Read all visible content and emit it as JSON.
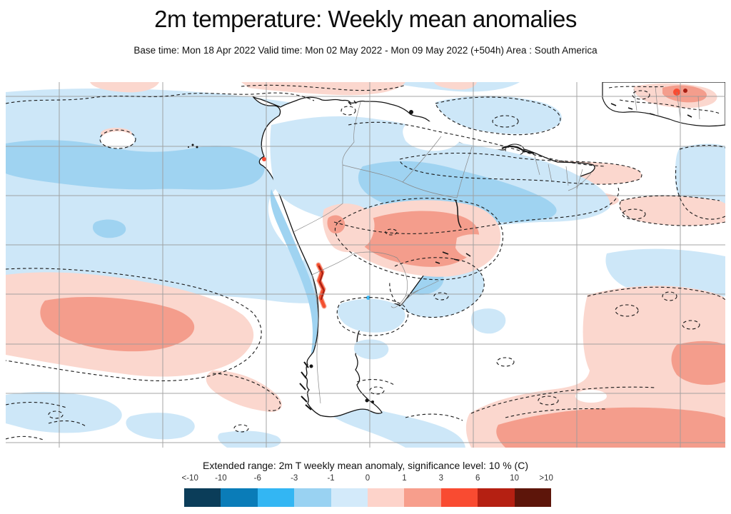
{
  "header": {
    "title": "2m temperature: Weekly mean anomalies",
    "subtitle": "Base time: Mon 18 Apr 2022 Valid time: Mon 02 May 2022 - Mon 09 May 2022 (+504h) Area : South America"
  },
  "colorbar": {
    "caption": "Extended range: 2m T weekly mean anomaly, significance level: 10 % (C)",
    "tick_labels": [
      "<-10",
      "-10",
      "-6",
      "-3",
      "-1",
      "0",
      "1",
      "3",
      "6",
      "10",
      ">10"
    ],
    "segment_colors": [
      "#0b3d59",
      "#0a7cb8",
      "#33b6f3",
      "#99d2f2",
      "#d3eafa",
      "#fdd3ca",
      "#f79e8c",
      "#f94b31",
      "#b52012",
      "#5d150a"
    ],
    "units": "C"
  },
  "map": {
    "area": "South America",
    "variable": "2m temperature weekly mean anomaly",
    "significance_level": "10 %",
    "palette": {
      "pale_blue": "#cde7f8",
      "mid_blue": "#9fd3f1",
      "bright_blue": "#3fb9f4",
      "pale_pink": "#fbd7ce",
      "salmon": "#f49d8c",
      "orange_red": "#f94b31",
      "dark_red": "#a81f12",
      "grid": "#9c9c9c",
      "contour": "#1a1a1a"
    },
    "regions": [
      {
        "name": "tropical-pacific",
        "anomaly_c": "-1 to 0",
        "shade": "pale_blue"
      },
      {
        "name": "equatorial-pacific-band",
        "anomaly_c": "-3 to -1",
        "shade": "mid_blue"
      },
      {
        "name": "northern-south-america-band",
        "anomaly_c": "-3 to -1",
        "shade": "mid_blue"
      },
      {
        "name": "central-brazil",
        "anomaly_c": "1 to 3",
        "shade": "salmon"
      },
      {
        "name": "peru-bolivia",
        "anomaly_c": "0 to 3",
        "shade": "pale_pink"
      },
      {
        "name": "chilean-andes-strip",
        "anomaly_c": "3 to 10",
        "shade": "dark_red"
      },
      {
        "name": "south-pacific-warm-pool",
        "anomaly_c": "0 to 3",
        "shade": "pale_pink"
      },
      {
        "name": "south-atlantic-warm-region",
        "anomaly_c": "0 to 3",
        "shade": "pale_pink"
      },
      {
        "name": "patagonian-seas",
        "anomaly_c": "-1 to 0",
        "shade": "pale_blue"
      },
      {
        "name": "uruguay-offshore",
        "anomaly_c": "-3 to 0",
        "shade": "pale_blue"
      }
    ]
  }
}
